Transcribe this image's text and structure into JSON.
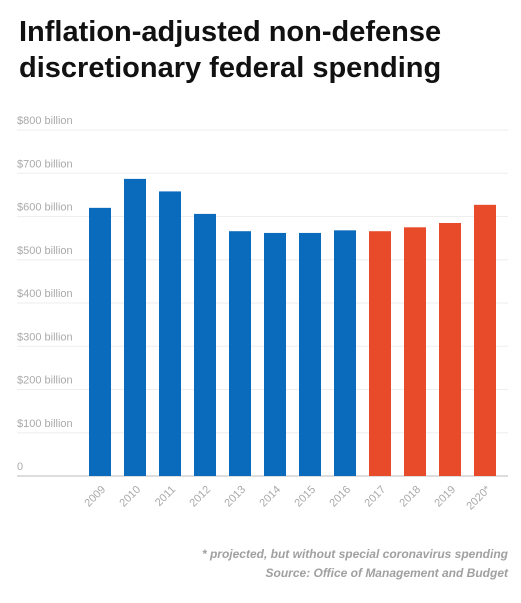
{
  "chart_data": {
    "type": "bar",
    "title": "Inflation-adjusted non-defense discretionary federal spending",
    "categories": [
      "2009",
      "2010",
      "2011",
      "2012",
      "2013",
      "2014",
      "2015",
      "2016",
      "2017",
      "2018",
      "2019",
      "2020*"
    ],
    "values": [
      620,
      687,
      658,
      606,
      566,
      562,
      562,
      568,
      566,
      575,
      585,
      627
    ],
    "bar_colors": [
      "#0a6bbd",
      "#0a6bbd",
      "#0a6bbd",
      "#0a6bbd",
      "#0a6bbd",
      "#0a6bbd",
      "#0a6bbd",
      "#0a6bbd",
      "#e84b2a",
      "#e84b2a",
      "#e84b2a",
      "#e84b2a"
    ],
    "actual_color": "#0a6bbd",
    "projected_color": "#e84b2a",
    "ylim": [
      0,
      800
    ],
    "y_ticks": [
      0,
      100,
      200,
      300,
      400,
      500,
      600,
      700,
      800
    ],
    "y_tick_labels": [
      "0",
      "$100 billion",
      "$200 billion",
      "$300 billion",
      "$400 billion",
      "$500 billion",
      "$600 billion",
      "$700 billion",
      "$800 billion"
    ],
    "xlabel": "",
    "ylabel": "",
    "grid": true
  },
  "footnote": "* projected, but without special coronavirus spending",
  "source": "Source: Office of Management and Budget"
}
